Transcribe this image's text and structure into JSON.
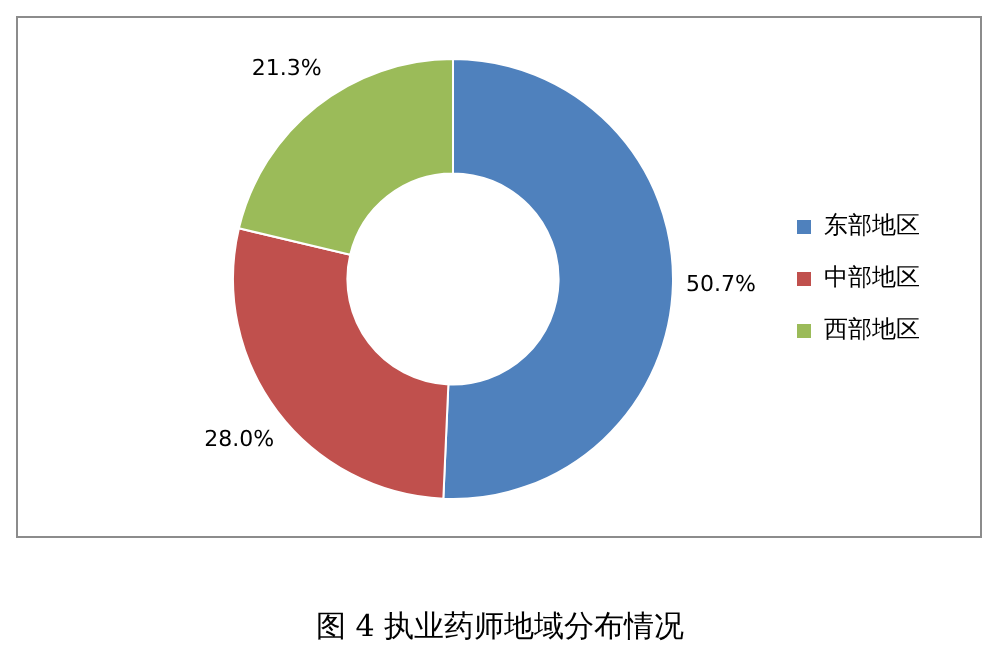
{
  "chart_data": {
    "type": "donut",
    "title": "图 4 执业药师地域分布情况",
    "categories": [
      "东部地区",
      "中部地区",
      "西部地区"
    ],
    "values": [
      50.7,
      28.0,
      21.3
    ],
    "colors": [
      "#4f81bd",
      "#c0504d",
      "#9bbb59"
    ],
    "value_labels": [
      "50.7%",
      "28.0%",
      "21.3%"
    ],
    "legend": "right"
  }
}
